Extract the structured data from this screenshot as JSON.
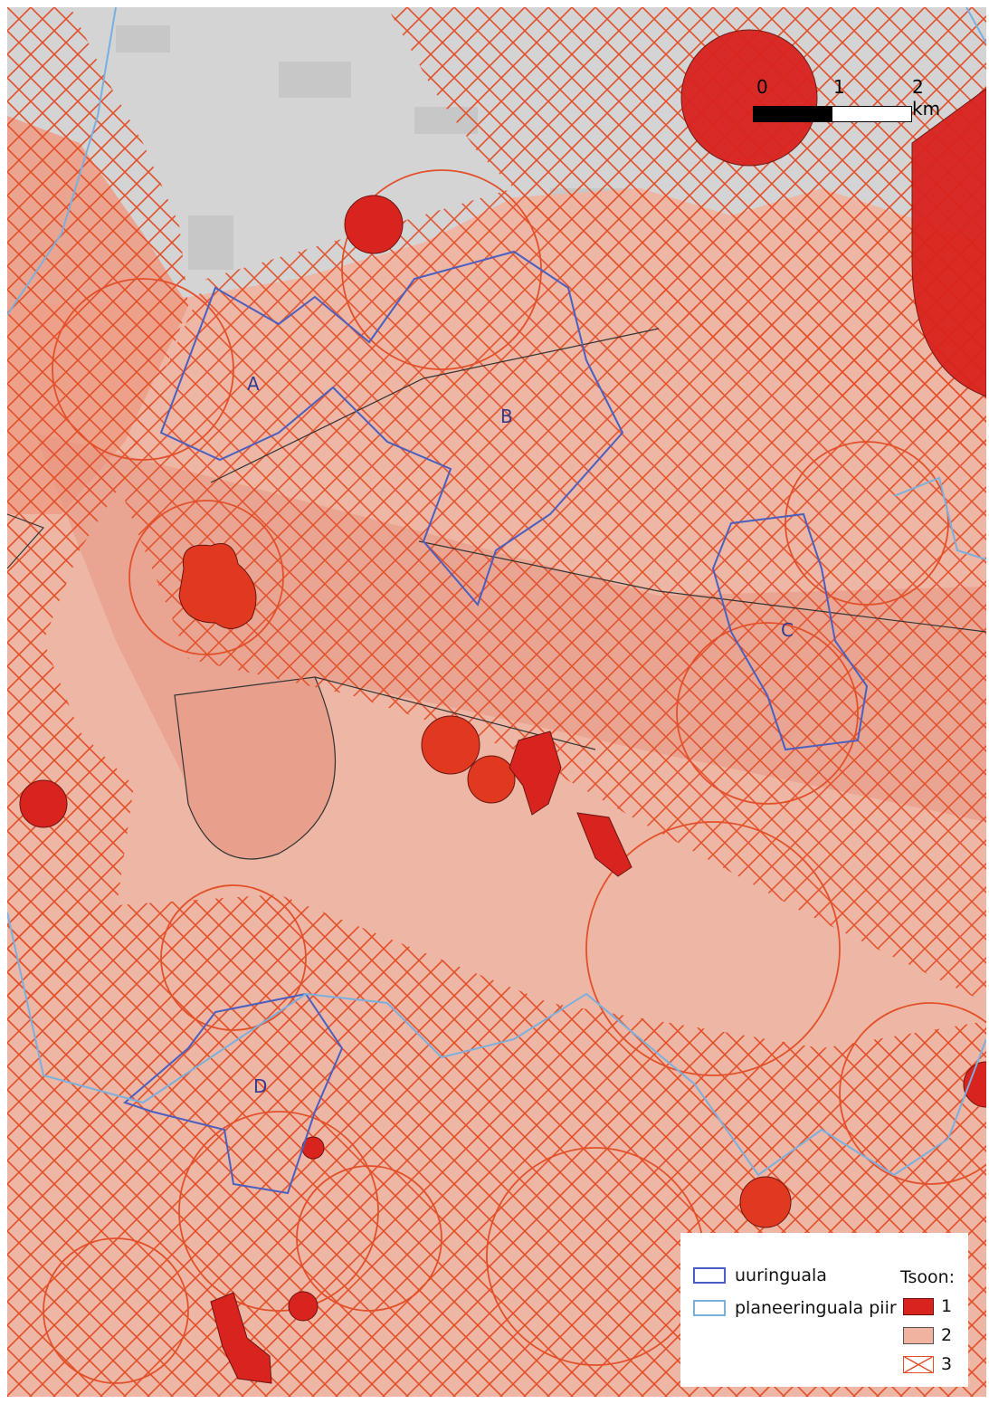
{
  "map": {
    "area_labels": [
      "A",
      "B",
      "C",
      "D"
    ],
    "colors": {
      "base_map": "#d7d7d7",
      "zone1_fill": "#d9231e",
      "zone2_fill": "#f0b3a0",
      "zone3_hatch": "#e2502a",
      "uuringuala_line": "#4a5fbf",
      "planeeringuala_line": "#7ab0de"
    }
  },
  "scalebar": {
    "labels": [
      "0",
      "1",
      "2 km"
    ]
  },
  "legend": {
    "uuringuala_label": "uuringuala",
    "planeeringuala_label": "planeeringuala piir",
    "zone_title": "Tsoon:",
    "zones": [
      "1",
      "2",
      "3"
    ]
  }
}
